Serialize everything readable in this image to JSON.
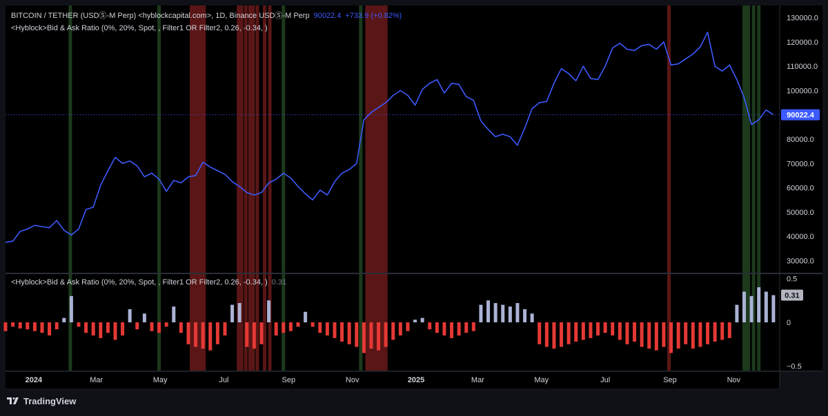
{
  "header": {
    "symbol": "BITCOIN / TETHER (USDⓈ-M Perp) <hyblockcapital.com>, 1D, Binance USDⓈ-M Perp",
    "price": "90022.4",
    "change": "+733.9 (+0.82%)",
    "indicator_legend": "<Hyblock>Bid & Ask Ratio (0%, 20%, Spot, , Filter1 OR Filter2, 0.26, -0.34, )",
    "lower_legend": "<Hyblock>Bid & Ask Ratio (0%, 20%, Spot, , Filter1 OR Filter2, 0.26, -0.34, )",
    "lower_value": "0.31"
  },
  "footer": {
    "brand": "TradingView"
  },
  "colors": {
    "price_line": "#3d5afe",
    "positive_bar": "#aab2d4",
    "negative_bar": "#e53935",
    "red_band": "#5a1616",
    "green_band": "#1c3a1c",
    "axis_text": "#d1d4dc"
  },
  "chart_data": [
    {
      "type": "line",
      "title": "BITCOIN / TETHER (USDⓈ-M Perp), 1D",
      "series": [
        {
          "name": "BITCOIN / TETHER (USDⓈ-M Perp)",
          "x": [
            "2023-12-05",
            "2023-12-12",
            "2023-12-19",
            "2023-12-26",
            "2024-01-02",
            "2024-01-09",
            "2024-01-16",
            "2024-01-23",
            "2024-01-30",
            "2024-02-06",
            "2024-02-13",
            "2024-02-20",
            "2024-02-27",
            "2024-03-05",
            "2024-03-12",
            "2024-03-19",
            "2024-03-26",
            "2024-04-02",
            "2024-04-09",
            "2024-04-16",
            "2024-04-23",
            "2024-04-30",
            "2024-05-07",
            "2024-05-14",
            "2024-05-21",
            "2024-05-28",
            "2024-06-04",
            "2024-06-11",
            "2024-06-18",
            "2024-06-25",
            "2024-07-02",
            "2024-07-09",
            "2024-07-16",
            "2024-07-23",
            "2024-07-30",
            "2024-08-06",
            "2024-08-13",
            "2024-08-20",
            "2024-08-27",
            "2024-09-03",
            "2024-09-10",
            "2024-09-17",
            "2024-09-24",
            "2024-10-01",
            "2024-10-08",
            "2024-10-15",
            "2024-10-22",
            "2024-10-29",
            "2024-11-05",
            "2024-11-12",
            "2024-11-19",
            "2024-11-26",
            "2024-12-03",
            "2024-12-10",
            "2024-12-17",
            "2024-12-24",
            "2024-12-31",
            "2025-01-07",
            "2025-01-14",
            "2025-01-21",
            "2025-01-28",
            "2025-02-04",
            "2025-02-11",
            "2025-02-18",
            "2025-02-25",
            "2025-03-04",
            "2025-03-11",
            "2025-03-18",
            "2025-03-25",
            "2025-04-01",
            "2025-04-08",
            "2025-04-15",
            "2025-04-22",
            "2025-04-29",
            "2025-05-06",
            "2025-05-13",
            "2025-05-20",
            "2025-05-27",
            "2025-06-03",
            "2025-06-10",
            "2025-06-17",
            "2025-06-24",
            "2025-07-01",
            "2025-07-08",
            "2025-07-15",
            "2025-07-22",
            "2025-07-29",
            "2025-08-05",
            "2025-08-12",
            "2025-08-19",
            "2025-08-26",
            "2025-09-02",
            "2025-09-09",
            "2025-09-16",
            "2025-09-23",
            "2025-09-30",
            "2025-10-07",
            "2025-10-14",
            "2025-10-21",
            "2025-10-28",
            "2025-11-04",
            "2025-11-11",
            "2025-11-18",
            "2025-11-25",
            "2025-12-02",
            "2025-12-09"
          ],
          "values": [
            37500,
            38000,
            42000,
            43000,
            44500,
            44000,
            43500,
            46500,
            42500,
            40500,
            43000,
            51000,
            52000,
            61000,
            67000,
            72500,
            70000,
            71000,
            69000,
            64500,
            66000,
            63500,
            58500,
            63000,
            62000,
            64500,
            65000,
            70500,
            68500,
            67000,
            65500,
            62500,
            60500,
            58000,
            57000,
            58000,
            62000,
            63500,
            66000,
            64000,
            60500,
            57500,
            55000,
            59000,
            57000,
            62500,
            66000,
            67500,
            70000,
            88000,
            91000,
            93000,
            95000,
            98000,
            100000,
            98000,
            94000,
            100500,
            103000,
            104500,
            99000,
            103000,
            102500,
            97500,
            96000,
            87500,
            84000,
            81000,
            82000,
            81000,
            77500,
            84500,
            92500,
            95000,
            95500,
            103000,
            109000,
            107000,
            104000,
            110000,
            105000,
            104500,
            110000,
            117500,
            119500,
            117000,
            116500,
            118500,
            119000,
            117000,
            120000,
            110500,
            111000,
            113000,
            115000,
            118000,
            124000,
            110000,
            108000,
            110500,
            104500,
            97000,
            86000,
            88000,
            92000,
            90022.4
          ],
          "ylim": [
            25000,
            135000
          ]
        }
      ],
      "y_ticks": [
        "130000.0",
        "120000.0",
        "110000.0",
        "100000.0",
        "90000.0",
        "80000.0",
        "70000.0",
        "60000.0",
        "50000.0",
        "40000.0",
        "30000.0"
      ],
      "y_tick_values": [
        130000,
        120000,
        110000,
        100000,
        90000,
        80000,
        70000,
        60000,
        50000,
        40000,
        30000
      ],
      "x_ticks": [
        "2024",
        "Mar",
        "May",
        "Jul",
        "Sep",
        "Nov",
        "2025",
        "Mar",
        "May",
        "Jul",
        "Sep",
        "Nov"
      ],
      "x_tick_dates": [
        "2024-01-01",
        "2024-03-01",
        "2024-05-01",
        "2024-07-01",
        "2024-09-01",
        "2024-11-01",
        "2025-01-01",
        "2025-03-01",
        "2025-05-01",
        "2025-07-01",
        "2025-09-01",
        "2025-11-01"
      ],
      "x_range": [
        "2023-12-05",
        "2025-12-15"
      ],
      "last_price_label": "90022.4",
      "red_highlight_dates": [
        "2024-05-31",
        "2024-06-02",
        "2024-06-05",
        "2024-06-07",
        "2024-06-10",
        "2024-06-12",
        "2024-07-15",
        "2024-07-18",
        "2024-07-22",
        "2024-07-26",
        "2024-07-29",
        "2024-08-02",
        "2024-08-09",
        "2024-08-14",
        "2024-11-15",
        "2024-11-17",
        "2024-11-19",
        "2024-11-21",
        "2024-11-23",
        "2024-11-25",
        "2024-11-27",
        "2024-11-29",
        "2024-12-01",
        "2024-12-03",
        "2025-08-31"
      ],
      "green_highlight_dates": [
        "2024-02-05",
        "2024-04-30",
        "2024-08-27",
        "2024-11-09",
        "2025-11-11",
        "2025-11-13",
        "2025-11-15",
        "2025-11-20",
        "2025-11-25"
      ],
      "grid": false
    },
    {
      "type": "bar",
      "title": "<Hyblock>Bid & Ask Ratio (0%, 20%, Spot, , Filter1 OR Filter2, 0.26, -0.34, )",
      "series": [
        {
          "name": "Bid & Ask Ratio",
          "x": [
            "2023-12-05",
            "2023-12-12",
            "2023-12-19",
            "2023-12-26",
            "2024-01-02",
            "2024-01-09",
            "2024-01-16",
            "2024-01-23",
            "2024-01-30",
            "2024-02-06",
            "2024-02-13",
            "2024-02-20",
            "2024-02-27",
            "2024-03-05",
            "2024-03-12",
            "2024-03-19",
            "2024-03-26",
            "2024-04-02",
            "2024-04-09",
            "2024-04-16",
            "2024-04-23",
            "2024-04-30",
            "2024-05-07",
            "2024-05-14",
            "2024-05-21",
            "2024-05-28",
            "2024-06-04",
            "2024-06-11",
            "2024-06-18",
            "2024-06-25",
            "2024-07-02",
            "2024-07-09",
            "2024-07-16",
            "2024-07-23",
            "2024-07-30",
            "2024-08-06",
            "2024-08-13",
            "2024-08-20",
            "2024-08-27",
            "2024-09-03",
            "2024-09-10",
            "2024-09-17",
            "2024-09-24",
            "2024-10-01",
            "2024-10-08",
            "2024-10-15",
            "2024-10-22",
            "2024-10-29",
            "2024-11-05",
            "2024-11-12",
            "2024-11-19",
            "2024-11-26",
            "2024-12-03",
            "2024-12-10",
            "2024-12-17",
            "2024-12-24",
            "2024-12-31",
            "2025-01-07",
            "2025-01-14",
            "2025-01-21",
            "2025-01-28",
            "2025-02-04",
            "2025-02-11",
            "2025-02-18",
            "2025-02-25",
            "2025-03-04",
            "2025-03-11",
            "2025-03-18",
            "2025-03-25",
            "2025-04-01",
            "2025-04-08",
            "2025-04-15",
            "2025-04-22",
            "2025-04-29",
            "2025-05-06",
            "2025-05-13",
            "2025-05-20",
            "2025-05-27",
            "2025-06-03",
            "2025-06-10",
            "2025-06-17",
            "2025-06-24",
            "2025-07-01",
            "2025-07-08",
            "2025-07-15",
            "2025-07-22",
            "2025-07-29",
            "2025-08-05",
            "2025-08-12",
            "2025-08-19",
            "2025-08-26",
            "2025-09-02",
            "2025-09-09",
            "2025-09-16",
            "2025-09-23",
            "2025-09-30",
            "2025-10-07",
            "2025-10-14",
            "2025-10-21",
            "2025-10-28",
            "2025-11-04",
            "2025-11-11",
            "2025-11-18",
            "2025-11-25",
            "2025-12-02",
            "2025-12-09"
          ],
          "values": [
            -0.1,
            -0.05,
            -0.07,
            -0.08,
            -0.1,
            -0.12,
            -0.15,
            -0.08,
            0.05,
            0.3,
            -0.05,
            -0.12,
            -0.15,
            -0.18,
            -0.12,
            -0.2,
            -0.15,
            0.15,
            -0.08,
            0.1,
            -0.1,
            -0.12,
            -0.05,
            0.18,
            -0.12,
            -0.25,
            -0.28,
            -0.3,
            -0.32,
            -0.25,
            -0.15,
            0.2,
            0.22,
            -0.28,
            -0.3,
            -0.25,
            0.25,
            -0.15,
            -0.12,
            -0.1,
            -0.05,
            0.12,
            -0.05,
            -0.12,
            -0.15,
            -0.18,
            -0.22,
            -0.25,
            -0.28,
            -0.35,
            -0.3,
            -0.32,
            -0.28,
            -0.2,
            -0.15,
            -0.1,
            0.03,
            0.05,
            -0.08,
            -0.12,
            -0.15,
            -0.18,
            -0.15,
            -0.12,
            -0.1,
            0.2,
            0.25,
            0.22,
            0.2,
            0.18,
            0.22,
            0.15,
            0.1,
            -0.25,
            -0.28,
            -0.3,
            -0.28,
            -0.25,
            -0.22,
            -0.2,
            -0.18,
            -0.15,
            -0.12,
            -0.15,
            -0.2,
            -0.25,
            -0.22,
            -0.28,
            -0.3,
            -0.32,
            -0.28,
            -0.35,
            -0.3,
            -0.25,
            -0.3,
            -0.28,
            -0.25,
            -0.22,
            -0.2,
            -0.18,
            0.2,
            0.35,
            0.3,
            0.4,
            0.35,
            0.31
          ],
          "ylim": [
            -0.55,
            0.55
          ]
        }
      ],
      "y_ticks": [
        "0.5",
        "0",
        "−0.5"
      ],
      "y_tick_values": [
        0.5,
        0,
        -0.5
      ],
      "last_value_label": "0.31"
    }
  ]
}
